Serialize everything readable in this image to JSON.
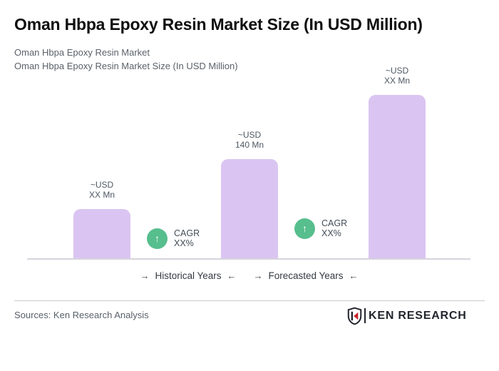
{
  "page": {
    "title": "Oman Hbpa Epoxy Resin Market Size (In USD Million)",
    "subtitle_line1": "Oman Hbpa Epoxy Resin Market",
    "subtitle_line2": "Oman Hbpa Epoxy Resin Market Size (In USD Million)"
  },
  "chart_data": {
    "type": "bar",
    "title": "Oman Hbpa Epoxy Resin Market Size (In USD Million)",
    "categories": [
      "",
      "",
      ""
    ],
    "series": [
      {
        "name": "Market Size (USD Mn)",
        "values": [
          70,
          140,
          230
        ]
      }
    ],
    "value_labels": [
      [
        "~USD",
        "XX Mn"
      ],
      [
        "~USD",
        "140 Mn"
      ],
      [
        "~USD",
        "XX Mn"
      ]
    ],
    "cagr_annotations": [
      {
        "line1": "CAGR",
        "line2": "XX%"
      },
      {
        "line1": "CAGR",
        "line2": "XX%"
      }
    ],
    "period_labels": {
      "historical": "Historical Years",
      "forecasted": "Forecasted Years"
    },
    "ylim": [
      0,
      250
    ],
    "grid": false,
    "legend": false,
    "bar_color": "#dac5f2",
    "baseline_color": "#d7d5de",
    "cagr_icon_color": "#57be8e"
  },
  "icons": {
    "up_arrow": "↑",
    "arrow_right": "→",
    "arrow_left": "←"
  },
  "footer": {
    "sources": "Sources: Ken Research Analysis",
    "logo_text": "KEN RESEARCH",
    "logo_accent_color": "#c9242b"
  }
}
